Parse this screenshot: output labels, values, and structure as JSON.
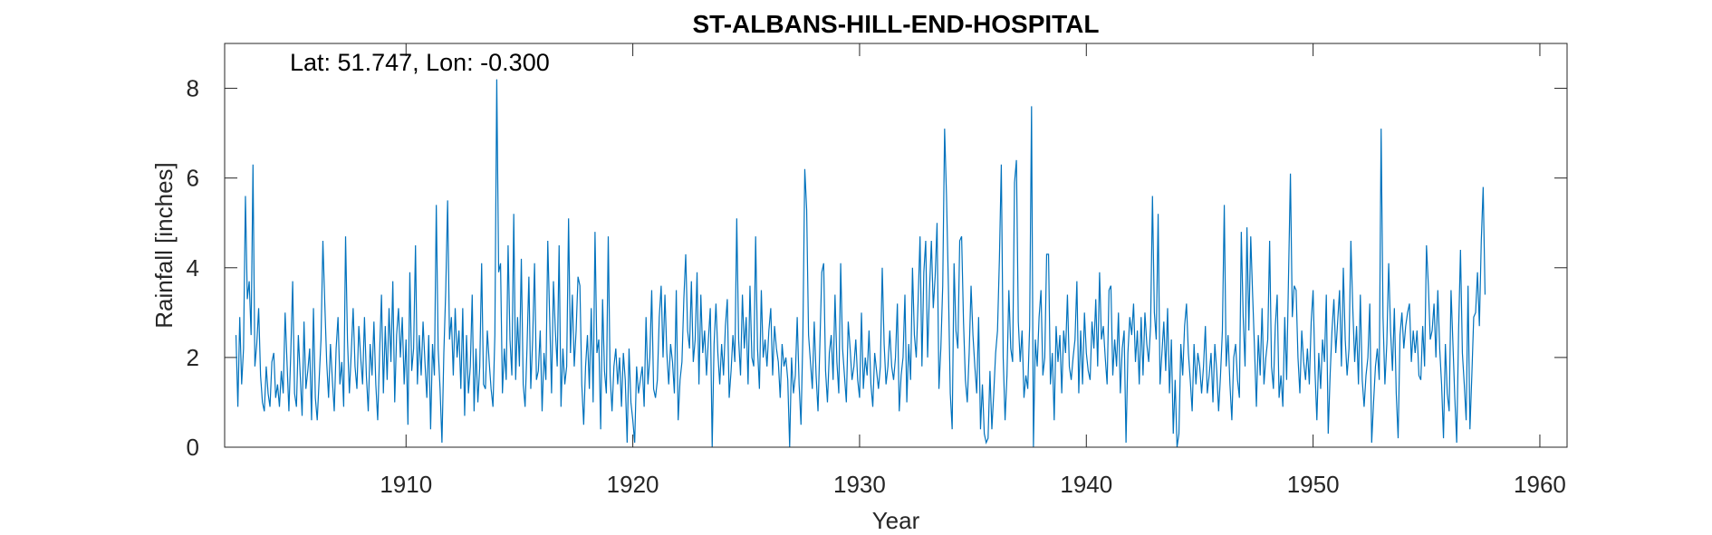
{
  "chart_data": {
    "type": "line",
    "title": "ST-ALBANS-HILL-END-HOSPITAL",
    "annotation": "Lat: 51.747, Lon: -0.300",
    "xlabel": "Year",
    "ylabel": "Rainfall [inches]",
    "xlim": [
      1902.0,
      1961.2
    ],
    "ylim": [
      0,
      9
    ],
    "xticks": [
      1910,
      1920,
      1930,
      1940,
      1950,
      1960
    ],
    "yticks": [
      0,
      2,
      4,
      6,
      8
    ],
    "grid": false,
    "line_color": "#0072BD",
    "series": [
      {
        "x_start": 1902.5,
        "x_step": 0.0833333,
        "values": [
          2.5,
          0.9,
          2.9,
          1.4,
          2.2,
          5.6,
          3.3,
          3.7,
          2.5,
          6.3,
          1.8,
          2.3,
          3.1,
          1.6,
          1.0,
          0.8,
          1.8,
          1.2,
          0.9,
          1.9,
          2.1,
          1.1,
          1.4,
          0.9,
          1.7,
          1.2,
          3.0,
          1.9,
          0.8,
          2.1,
          3.7,
          1.2,
          0.9,
          2.5,
          1.6,
          0.7,
          2.8,
          1.3,
          1.7,
          2.2,
          0.6,
          3.1,
          1.1,
          0.6,
          1.5,
          2.4,
          4.6,
          3.2,
          1.9,
          1.1,
          2.3,
          1.5,
          0.8,
          2.2,
          2.9,
          1.4,
          1.9,
          0.9,
          4.7,
          2.4,
          1.2,
          2.1,
          3.1,
          1.8,
          1.3,
          2.7,
          2.0,
          1.4,
          2.9,
          1.6,
          0.8,
          2.3,
          1.6,
          2.8,
          1.4,
          0.6,
          2.1,
          3.4,
          1.2,
          2.7,
          1.5,
          3.1,
          1.9,
          3.7,
          1.0,
          2.5,
          3.1,
          2.0,
          2.9,
          1.4,
          2.4,
          0.5,
          3.9,
          1.7,
          2.2,
          4.5,
          1.4,
          2.5,
          1.6,
          2.8,
          1.9,
          1.1,
          2.5,
          0.4,
          2.3,
          1.6,
          5.4,
          2.2,
          1.3,
          0.1,
          2.1,
          3.5,
          5.5,
          2.4,
          2.9,
          1.6,
          3.1,
          2.0,
          2.6,
          1.3,
          3.1,
          0.7,
          2.5,
          1.2,
          1.8,
          3.4,
          0.8,
          2.2,
          1.0,
          1.8,
          4.1,
          1.4,
          1.3,
          2.6,
          1.9,
          1.3,
          0.9,
          2.5,
          8.2,
          3.9,
          4.1,
          1.2,
          2.2,
          1.5,
          4.5,
          2.4,
          1.6,
          5.2,
          1.5,
          2.9,
          1.8,
          4.2,
          1.4,
          0.9,
          2.2,
          3.8,
          1.3,
          2.4,
          4.1,
          1.5,
          1.7,
          2.6,
          0.8,
          2.1,
          1.5,
          4.6,
          2.9,
          1.2,
          3.7,
          2.6,
          1.8,
          4.5,
          0.9,
          2.2,
          1.4,
          1.8,
          5.1,
          2.1,
          3.4,
          1.8,
          2.6,
          3.8,
          3.6,
          1.4,
          0.5,
          1.8,
          2.5,
          1.3,
          3.1,
          1.0,
          4.8,
          2.1,
          2.4,
          0.4,
          3.3,
          1.7,
          1.2,
          4.7,
          1.6,
          0.8,
          1.8,
          2.2,
          1.4,
          2.0,
          0.9,
          2.1,
          1.5,
          0.1,
          2.2,
          1.0,
          0.6,
          0.1,
          1.8,
          1.2,
          1.5,
          1.8,
          0.9,
          2.9,
          1.4,
          2.0,
          3.5,
          1.3,
          1.1,
          1.5,
          2.9,
          3.6,
          2.0,
          3.4,
          2.1,
          1.4,
          2.3,
          1.9,
          1.2,
          3.5,
          0.6,
          1.5,
          1.9,
          3.3,
          4.3,
          2.6,
          2.2,
          3.7,
          1.9,
          2.4,
          3.9,
          1.4,
          3.4,
          2.1,
          2.6,
          1.6,
          2.4,
          3.1,
          0.0,
          2.3,
          3.2,
          2.1,
          1.4,
          2.3,
          1.6,
          2.7,
          3.3,
          1.1,
          1.7,
          2.5,
          1.9,
          5.1,
          2.4,
          1.6,
          3.4,
          2.2,
          2.9,
          1.4,
          3.6,
          2.0,
          1.8,
          4.7,
          2.2,
          1.3,
          3.5,
          2.0,
          2.4,
          1.8,
          2.6,
          3.1,
          1.6,
          2.7,
          2.2,
          1.9,
          1.1,
          2.3,
          1.8,
          2.0,
          1.5,
          0.0,
          2.0,
          1.2,
          1.6,
          2.9,
          1.4,
          0.5,
          2.5,
          6.2,
          5.3,
          2.5,
          1.9,
          1.3,
          2.8,
          1.6,
          0.8,
          2.3,
          3.9,
          4.1,
          1.7,
          1.0,
          2.1,
          2.5,
          1.5,
          3.4,
          1.9,
          1.2,
          4.1,
          2.2,
          1.6,
          1.0,
          2.8,
          2.2,
          1.5,
          1.8,
          2.4,
          1.5,
          1.1,
          3.0,
          1.3,
          2.0,
          1.6,
          2.6,
          1.4,
          0.9,
          2.1,
          1.7,
          1.3,
          1.8,
          4.0,
          2.3,
          1.4,
          1.8,
          2.6,
          1.8,
          1.5,
          2.0,
          3.2,
          0.8,
          1.6,
          2.0,
          3.4,
          1.0,
          2.3,
          1.5,
          4.0,
          2.5,
          2.0,
          3.3,
          4.7,
          1.8,
          3.9,
          4.6,
          2.0,
          3.5,
          4.6,
          3.1,
          3.8,
          5.0,
          1.3,
          2.2,
          3.6,
          7.1,
          5.6,
          3.6,
          1.2,
          0.4,
          4.1,
          2.6,
          2.2,
          4.6,
          4.7,
          2.8,
          1.5,
          1.0,
          2.1,
          3.6,
          2.5,
          1.8,
          1.2,
          2.9,
          0.4,
          1.4,
          0.3,
          0.1,
          0.2,
          1.7,
          0.4,
          1.2,
          2.1,
          2.6,
          4.2,
          6.3,
          2.0,
          0.6,
          1.6,
          3.5,
          2.2,
          1.9,
          5.9,
          6.4,
          2.8,
          1.9,
          2.6,
          1.1,
          1.6,
          1.3,
          2.7,
          7.6,
          0.0,
          2.4,
          1.8,
          2.9,
          3.5,
          1.6,
          2.0,
          4.3,
          4.3,
          1.4,
          2.1,
          0.6,
          2.7,
          1.9,
          2.5,
          1.2,
          2.6,
          2.1,
          3.4,
          1.8,
          1.5,
          2.0,
          2.4,
          3.7,
          1.2,
          2.6,
          1.4,
          3.0,
          2.1,
          1.7,
          1.5,
          2.8,
          2.2,
          3.3,
          1.8,
          3.9,
          2.4,
          2.7,
          2.0,
          1.4,
          3.5,
          3.6,
          1.6,
          2.4,
          1.8,
          3.0,
          1.2,
          2.2,
          2.6,
          0.1,
          2.1,
          2.9,
          2.5,
          3.2,
          1.9,
          2.6,
          1.4,
          2.9,
          1.6,
          3.0,
          2.3,
          1.9,
          2.7,
          5.6,
          3.0,
          2.4,
          5.2,
          1.4,
          2.1,
          2.8,
          1.7,
          3.1,
          1.2,
          2.4,
          0.3,
          1.5,
          0.0,
          0.3,
          2.3,
          1.6,
          2.7,
          3.2,
          2.1,
          1.5,
          0.8,
          2.3,
          1.4,
          2.1,
          1.8,
          1.2,
          1.8,
          2.7,
          1.2,
          1.6,
          2.1,
          1.0,
          2.3,
          1.7,
          0.8,
          1.6,
          2.6,
          5.4,
          1.8,
          2.5,
          1.4,
          0.6,
          2.0,
          2.3,
          1.5,
          1.1,
          4.8,
          2.9,
          1.8,
          4.9,
          2.6,
          4.7,
          3.4,
          2.2,
          0.9,
          2.5,
          1.6,
          3.1,
          1.4,
          2.0,
          2.4,
          4.6,
          1.8,
          1.3,
          2.7,
          3.4,
          1.1,
          1.6,
          0.9,
          2.9,
          1.5,
          3.8,
          6.1,
          2.9,
          3.6,
          3.5,
          2.0,
          1.2,
          2.6,
          1.9,
          1.5,
          2.2,
          1.4,
          2.8,
          3.5,
          1.7,
          0.6,
          2.1,
          1.3,
          2.4,
          1.9,
          3.4,
          0.3,
          1.6,
          2.6,
          3.3,
          2.1,
          2.8,
          3.5,
          1.8,
          4.0,
          2.4,
          1.6,
          2.2,
          4.6,
          3.1,
          1.9,
          2.7,
          1.4,
          3.4,
          1.5,
          0.9,
          1.6,
          2.0,
          3.2,
          0.1,
          1.0,
          1.8,
          2.2,
          1.5,
          7.1,
          2.9,
          1.4,
          2.3,
          4.1,
          2.6,
          1.7,
          3.1,
          1.2,
          0.2,
          2.5,
          3.0,
          2.2,
          2.7,
          3.0,
          3.2,
          1.9,
          2.6,
          2.1,
          2.6,
          1.6,
          1.5,
          2.7,
          1.8,
          4.5,
          3.6,
          2.4,
          2.6,
          3.2,
          2.0,
          3.5,
          2.2,
          1.4,
          0.2,
          2.3,
          1.2,
          0.8,
          3.5,
          2.3,
          1.1,
          0.1,
          2.6,
          4.4,
          2.1,
          1.4,
          0.6,
          3.6,
          0.4,
          1.6,
          2.9,
          3.0,
          3.9,
          2.7,
          4.6,
          5.8,
          3.4
        ]
      }
    ]
  }
}
